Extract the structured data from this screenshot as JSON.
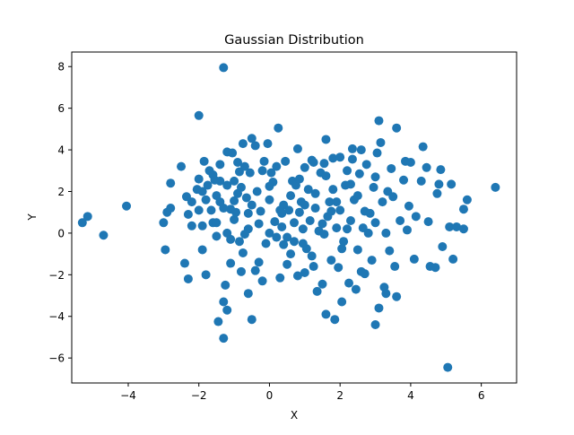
{
  "chart_data": {
    "type": "scatter",
    "title": "Gaussian Distribution",
    "xlabel": "X",
    "ylabel": "Y",
    "xlim": [
      -5.6,
      7.0
    ],
    "ylim": [
      -7.2,
      8.7
    ],
    "xticks": [
      -4,
      -2,
      0,
      2,
      4,
      6
    ],
    "yticks": [
      -6,
      -4,
      -2,
      0,
      2,
      4,
      6,
      8
    ],
    "grid": false,
    "marker_color": "#1f77b4",
    "points": [
      [
        -5.3,
        0.5
      ],
      [
        -5.15,
        0.8
      ],
      [
        -4.7,
        -0.1
      ],
      [
        -4.05,
        1.3
      ],
      [
        -3.0,
        0.5
      ],
      [
        -2.95,
        -0.8
      ],
      [
        -2.9,
        1.0
      ],
      [
        -2.8,
        1.2
      ],
      [
        -2.8,
        2.4
      ],
      [
        -2.5,
        3.2
      ],
      [
        -2.4,
        -1.45
      ],
      [
        -2.3,
        -2.2
      ],
      [
        -2.3,
        0.9
      ],
      [
        -2.2,
        1.5
      ],
      [
        -2.2,
        0.35
      ],
      [
        -2.05,
        2.1
      ],
      [
        -2.0,
        5.65
      ],
      [
        -2.0,
        2.6
      ],
      [
        -2.0,
        1.1
      ],
      [
        -1.9,
        -0.8
      ],
      [
        -1.9,
        0.35
      ],
      [
        -1.85,
        3.45
      ],
      [
        -1.8,
        -2.0
      ],
      [
        -1.8,
        1.6
      ],
      [
        -1.75,
        2.3
      ],
      [
        -1.7,
        3.0
      ],
      [
        -1.6,
        0.5
      ],
      [
        -1.6,
        2.8
      ],
      [
        -1.5,
        -0.15
      ],
      [
        -1.5,
        0.5
      ],
      [
        -1.5,
        1.8
      ],
      [
        -1.45,
        -4.25
      ],
      [
        -1.4,
        3.3
      ],
      [
        -1.4,
        2.5
      ],
      [
        -1.4,
        1.5
      ],
      [
        -1.3,
        -5.05
      ],
      [
        -1.3,
        7.95
      ],
      [
        -1.3,
        -3.3
      ],
      [
        -1.25,
        -2.5
      ],
      [
        -1.2,
        -3.7
      ],
      [
        -1.2,
        3.9
      ],
      [
        -1.2,
        2.3
      ],
      [
        -1.2,
        0.0
      ],
      [
        -1.1,
        1.15
      ],
      [
        -1.1,
        -0.3
      ],
      [
        -1.05,
        3.85
      ],
      [
        -1.0,
        0.65
      ],
      [
        -1.0,
        2.5
      ],
      [
        -0.9,
        1.9
      ],
      [
        -0.9,
        3.4
      ],
      [
        -0.85,
        -0.4
      ],
      [
        -0.8,
        -1.85
      ],
      [
        -0.8,
        2.2
      ],
      [
        -0.75,
        -0.95
      ],
      [
        -0.7,
        3.2
      ],
      [
        -0.65,
        1.7
      ],
      [
        -0.6,
        -2.9
      ],
      [
        -0.6,
        0.2
      ],
      [
        -0.55,
        2.9
      ],
      [
        -0.5,
        -4.15
      ],
      [
        -0.5,
        4.55
      ],
      [
        -0.5,
        1.35
      ],
      [
        -0.4,
        4.2
      ],
      [
        -0.35,
        2.0
      ],
      [
        -0.3,
        -1.4
      ],
      [
        -0.3,
        0.45
      ],
      [
        -0.2,
        -2.3
      ],
      [
        -0.2,
        3.0
      ],
      [
        -0.1,
        -0.5
      ],
      [
        -0.05,
        4.3
      ],
      [
        0.0,
        1.6
      ],
      [
        0.0,
        0.0
      ],
      [
        0.05,
        2.9
      ],
      [
        0.1,
        2.45
      ],
      [
        0.15,
        0.55
      ],
      [
        0.2,
        3.2
      ],
      [
        0.25,
        5.05
      ],
      [
        0.3,
        -2.15
      ],
      [
        0.35,
        0.3
      ],
      [
        0.4,
        1.35
      ],
      [
        0.4,
        -0.55
      ],
      [
        0.45,
        3.45
      ],
      [
        0.5,
        -0.2
      ],
      [
        0.6,
        1.8
      ],
      [
        0.6,
        -1.0
      ],
      [
        0.65,
        2.5
      ],
      [
        0.7,
        -0.4
      ],
      [
        0.75,
        2.3
      ],
      [
        0.8,
        4.05
      ],
      [
        0.8,
        -2.05
      ],
      [
        0.85,
        1.0
      ],
      [
        0.9,
        1.5
      ],
      [
        0.95,
        0.2
      ],
      [
        1.0,
        3.15
      ],
      [
        1.0,
        -1.9
      ],
      [
        1.05,
        -0.75
      ],
      [
        1.1,
        2.1
      ],
      [
        1.15,
        0.6
      ],
      [
        1.2,
        3.5
      ],
      [
        1.25,
        -1.6
      ],
      [
        1.3,
        1.2
      ],
      [
        1.35,
        -2.8
      ],
      [
        1.4,
        0.1
      ],
      [
        1.45,
        2.9
      ],
      [
        1.5,
        -2.45
      ],
      [
        1.55,
        3.35
      ],
      [
        1.6,
        4.5
      ],
      [
        1.6,
        -3.9
      ],
      [
        1.65,
        0.8
      ],
      [
        1.7,
        1.5
      ],
      [
        1.75,
        -1.3
      ],
      [
        1.8,
        2.1
      ],
      [
        1.8,
        3.6
      ],
      [
        1.85,
        -4.15
      ],
      [
        1.9,
        0.25
      ],
      [
        1.95,
        -1.65
      ],
      [
        2.0,
        3.65
      ],
      [
        2.0,
        1.1
      ],
      [
        2.05,
        -3.3
      ],
      [
        2.1,
        -0.4
      ],
      [
        2.15,
        2.3
      ],
      [
        2.2,
        3.0
      ],
      [
        2.25,
        -2.4
      ],
      [
        2.3,
        0.6
      ],
      [
        2.35,
        4.05
      ],
      [
        2.4,
        1.6
      ],
      [
        2.45,
        -2.7
      ],
      [
        2.5,
        -0.8
      ],
      [
        2.55,
        2.85
      ],
      [
        2.6,
        -1.85
      ],
      [
        2.6,
        4.0
      ],
      [
        2.65,
        0.25
      ],
      [
        2.7,
        1.05
      ],
      [
        2.75,
        3.3
      ],
      [
        2.85,
        0.95
      ],
      [
        2.9,
        -1.3
      ],
      [
        2.95,
        2.2
      ],
      [
        3.0,
        -4.4
      ],
      [
        3.0,
        0.5
      ],
      [
        3.05,
        3.85
      ],
      [
        3.1,
        5.4
      ],
      [
        3.1,
        -3.6
      ],
      [
        3.15,
        4.35
      ],
      [
        3.2,
        1.5
      ],
      [
        3.25,
        -2.6
      ],
      [
        3.3,
        0.0
      ],
      [
        3.35,
        2.0
      ],
      [
        3.4,
        -0.85
      ],
      [
        3.45,
        3.1
      ],
      [
        3.5,
        1.75
      ],
      [
        3.55,
        -1.6
      ],
      [
        3.6,
        5.05
      ],
      [
        3.6,
        -3.05
      ],
      [
        3.7,
        0.6
      ],
      [
        3.8,
        2.55
      ],
      [
        3.85,
        3.45
      ],
      [
        3.9,
        0.15
      ],
      [
        3.95,
        1.3
      ],
      [
        4.0,
        3.4
      ],
      [
        4.1,
        -1.25
      ],
      [
        4.15,
        0.8
      ],
      [
        4.3,
        2.5
      ],
      [
        4.35,
        4.15
      ],
      [
        4.45,
        3.15
      ],
      [
        4.5,
        0.55
      ],
      [
        4.55,
        -1.6
      ],
      [
        4.7,
        -1.65
      ],
      [
        4.75,
        1.9
      ],
      [
        4.8,
        2.35
      ],
      [
        4.85,
        3.05
      ],
      [
        4.9,
        -0.65
      ],
      [
        5.05,
        -6.45
      ],
      [
        5.1,
        0.3
      ],
      [
        5.15,
        2.35
      ],
      [
        5.2,
        -1.25
      ],
      [
        5.3,
        0.3
      ],
      [
        5.5,
        0.2
      ],
      [
        5.5,
        1.15
      ],
      [
        5.6,
        1.6
      ],
      [
        6.4,
        2.2
      ],
      [
        -1.65,
        1.1
      ],
      [
        -0.95,
        1.0
      ],
      [
        -0.25,
        1.05
      ],
      [
        0.3,
        1.1
      ],
      [
        0.7,
        0.5
      ],
      [
        1.3,
        1.9
      ],
      [
        1.9,
        1.5
      ],
      [
        2.5,
        1.8
      ],
      [
        -1.3,
        1.2
      ],
      [
        -0.6,
        0.95
      ],
      [
        0.2,
        -0.2
      ],
      [
        0.95,
        -0.5
      ],
      [
        1.5,
        0.45
      ],
      [
        2.2,
        0.2
      ],
      [
        2.8,
        0.0
      ],
      [
        -1.1,
        -1.45
      ],
      [
        -0.4,
        -1.8
      ],
      [
        0.5,
        -1.5
      ],
      [
        1.2,
        -1.1
      ],
      [
        2.7,
        -1.95
      ],
      [
        3.3,
        -2.9
      ],
      [
        -2.35,
        1.75
      ],
      [
        -1.9,
        2.0
      ],
      [
        -0.85,
        2.95
      ],
      [
        0.0,
        2.25
      ],
      [
        0.85,
        2.6
      ],
      [
        1.6,
        2.75
      ],
      [
        2.3,
        2.35
      ],
      [
        3.0,
        2.7
      ],
      [
        -1.55,
        2.55
      ],
      [
        -0.15,
        3.45
      ],
      [
        1.25,
        3.4
      ],
      [
        2.35,
        3.55
      ],
      [
        -0.75,
        4.3
      ],
      [
        0.55,
        1.1
      ],
      [
        1.75,
        1.05
      ],
      [
        -0.7,
        -0.05
      ],
      [
        0.35,
        0.95
      ],
      [
        1.0,
        1.35
      ],
      [
        1.55,
        -0.05
      ],
      [
        2.05,
        -0.75
      ],
      [
        -1.0,
        1.55
      ]
    ]
  }
}
